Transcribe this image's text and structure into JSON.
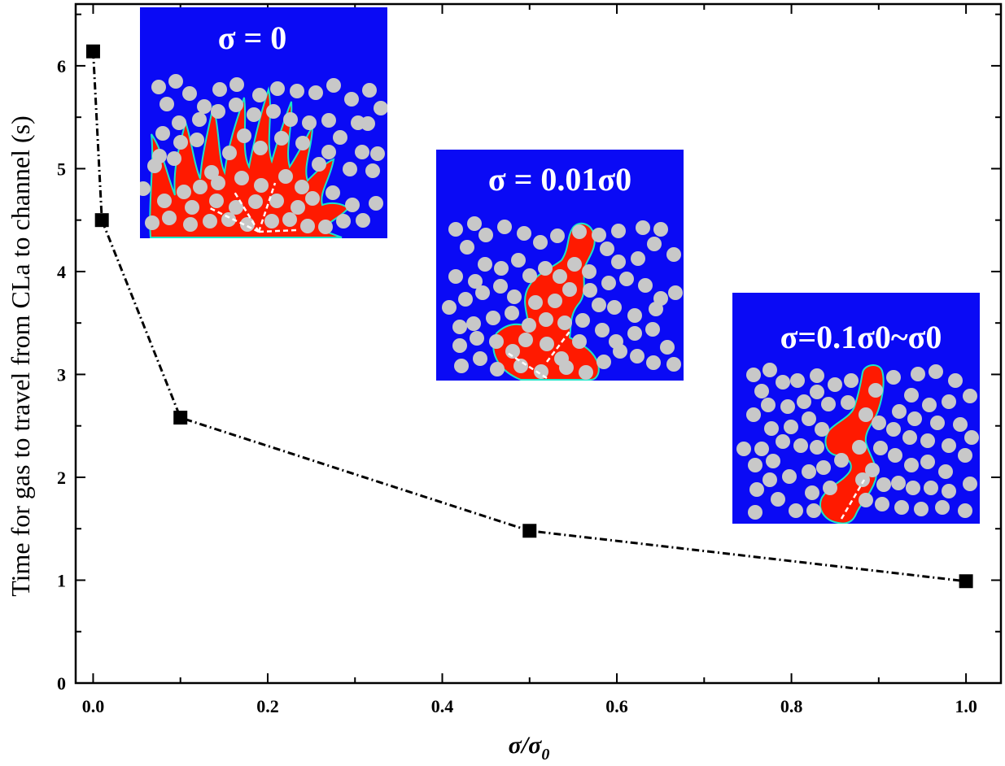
{
  "chart_data": {
    "type": "line",
    "ylabel": "Time for gas to travel from CLa to channel (s)",
    "xlabel": {
      "main": "σ/σ",
      "sub": "0"
    },
    "xlim": [
      -0.02,
      1.04
    ],
    "ylim": [
      0,
      6.6
    ],
    "xticks": [
      0.0,
      0.2,
      0.4,
      0.6,
      0.8,
      1.0
    ],
    "xtick_labels": [
      "0.0",
      "0.2",
      "0.4",
      "0.6",
      "0.8",
      "1.0"
    ],
    "yticks": [
      0,
      1,
      2,
      3,
      4,
      5,
      6
    ],
    "ytick_labels": [
      "0",
      "1",
      "2",
      "3",
      "4",
      "5",
      "6"
    ],
    "grid": false,
    "series": [
      {
        "x": [
          0.0,
          0.01,
          0.1,
          0.5,
          1.0
        ],
        "y": [
          6.14,
          4.5,
          2.58,
          1.48,
          0.99
        ],
        "marker": "square",
        "line_style": "dash-dot",
        "color": "#000000"
      }
    ],
    "insets": [
      {
        "label": "σ = 0",
        "pattern": "fingering"
      },
      {
        "label": "σ = 0.01σ0",
        "pattern": "branching"
      },
      {
        "label": "σ=0.1σ0~σ0",
        "pattern": "single-path"
      }
    ]
  },
  "colors": {
    "inset_background": "#0a0af5",
    "particle": "#c8c8c8",
    "gas": "#ff1a00",
    "interface": "#19e6c8",
    "arrow": "#ffffff"
  }
}
